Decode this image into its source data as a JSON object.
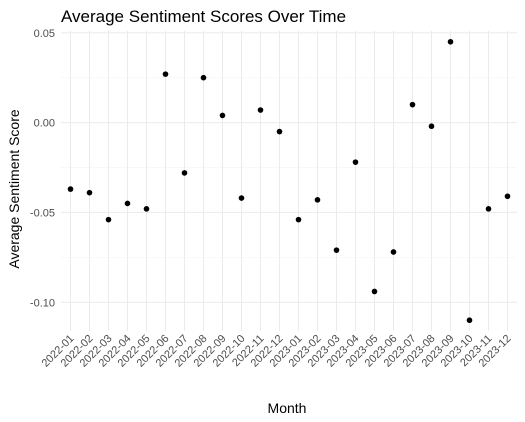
{
  "chart_data": {
    "type": "scatter",
    "title": "Average Sentiment Scores Over Time",
    "xlabel": "Month",
    "ylabel": "Average Sentiment Score",
    "categories": [
      "2022-01",
      "2022-02",
      "2022-03",
      "2022-04",
      "2022-05",
      "2022-06",
      "2022-07",
      "2022-08",
      "2022-09",
      "2022-10",
      "2022-11",
      "2022-12",
      "2023-01",
      "2023-02",
      "2023-03",
      "2023-04",
      "2023-05",
      "2023-06",
      "2023-07",
      "2023-08",
      "2023-09",
      "2023-10",
      "2023-11",
      "2023-12"
    ],
    "values": [
      -0.037,
      -0.039,
      -0.054,
      -0.045,
      -0.048,
      0.027,
      -0.028,
      0.025,
      0.004,
      -0.042,
      0.007,
      -0.005,
      -0.054,
      -0.043,
      -0.071,
      -0.022,
      -0.094,
      -0.072,
      0.01,
      -0.002,
      0.045,
      -0.11,
      -0.048,
      -0.041
    ],
    "ylim": [
      -0.116,
      0.051
    ],
    "yticks": [
      -0.1,
      -0.05,
      0.0,
      0.05
    ],
    "ytick_labels": [
      "-0.10",
      "-0.05",
      "0.00",
      "0.05"
    ],
    "grid": true,
    "point_color": "#000000"
  }
}
